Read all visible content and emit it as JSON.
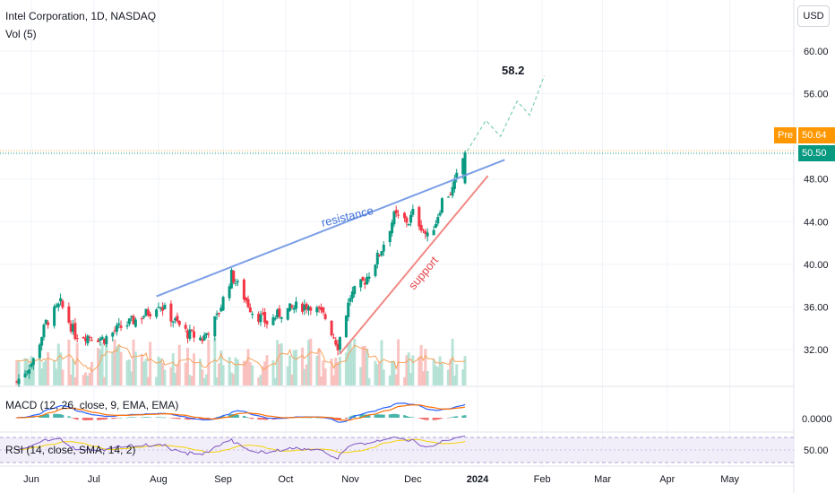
{
  "header": {
    "title": "Intel Corporation, 1D, NASDAQ",
    "volume_label": "Vol (5)",
    "currency": "USD"
  },
  "price_tags": {
    "pre_label": "Pre",
    "pre_value": "50.64",
    "last_value": "50.50",
    "pre_color": "#ff9800",
    "last_color": "#089981"
  },
  "annotations": {
    "resistance": "resistance",
    "support": "support",
    "target": "58.2"
  },
  "indicators": {
    "macd_label": "MACD (12, 26, close, 9, EMA, EMA)",
    "macd_value": "0.0000",
    "rsi_label": "RSI (14, close, SMA, 14, 2)",
    "rsi_value": "50.00"
  },
  "colors": {
    "up": "#089981",
    "down": "#f23645",
    "resistance": "#7b9ee6",
    "support": "#f08a84",
    "macd_line": "#2962ff",
    "signal_line": "#ff6d00",
    "rsi_line": "#7e57c2",
    "rsi_ma": "#f5d100"
  },
  "chart_data": {
    "type": "candlestick",
    "title": "Intel Corporation, 1D, NASDAQ",
    "x_axis_ticks": [
      "Jun",
      "Jul",
      "Aug",
      "Sep",
      "Oct",
      "Nov",
      "Dec",
      "2024",
      "Feb",
      "Mar",
      "Apr",
      "May"
    ],
    "y_axis_ticks": [
      "60.00",
      "56.00",
      "48.00",
      "44.00",
      "40.00",
      "36.00",
      "32.00"
    ],
    "y_range": [
      29.5,
      62
    ],
    "price_path": [
      [
        "2023-05-25",
        29.0
      ],
      [
        "2023-06-02",
        31.0
      ],
      [
        "2023-06-08",
        34.5
      ],
      [
        "2023-06-15",
        36.3
      ],
      [
        "2023-06-22",
        33.4
      ],
      [
        "2023-06-29",
        33.3
      ],
      [
        "2023-07-06",
        33.0
      ],
      [
        "2023-07-13",
        34.0
      ],
      [
        "2023-07-21",
        34.8
      ],
      [
        "2023-07-28",
        35.6
      ],
      [
        "2023-08-01",
        36.4
      ],
      [
        "2023-08-08",
        34.8
      ],
      [
        "2023-08-15",
        33.5
      ],
      [
        "2023-08-22",
        33.0
      ],
      [
        "2023-08-29",
        35.0
      ],
      [
        "2023-09-05",
        39.0
      ],
      [
        "2023-09-08",
        38.0
      ],
      [
        "2023-09-15",
        35.6
      ],
      [
        "2023-09-22",
        34.5
      ],
      [
        "2023-09-29",
        35.5
      ],
      [
        "2023-10-06",
        36.0
      ],
      [
        "2023-10-13",
        36.2
      ],
      [
        "2023-10-20",
        35.0
      ],
      [
        "2023-10-26",
        32.4
      ],
      [
        "2023-11-01",
        37.0
      ],
      [
        "2023-11-08",
        38.5
      ],
      [
        "2023-11-15",
        41.0
      ],
      [
        "2023-11-22",
        44.5
      ],
      [
        "2023-11-29",
        44.0
      ],
      [
        "2023-12-01",
        44.8
      ],
      [
        "2023-12-05",
        43.6
      ],
      [
        "2023-12-08",
        42.5
      ],
      [
        "2023-12-12",
        44.0
      ],
      [
        "2023-12-15",
        46.0
      ],
      [
        "2023-12-20",
        47.0
      ],
      [
        "2023-12-26",
        50.5
      ]
    ],
    "resistance_line": [
      [
        "2023-07-31",
        37.0
      ],
      [
        "2024-01-14",
        49.8
      ]
    ],
    "support_line": [
      [
        "2023-10-27",
        31.6
      ],
      [
        "2024-01-06",
        48.3
      ]
    ],
    "projection_path": [
      [
        "2023-12-27",
        50.6
      ],
      [
        "2024-01-05",
        53.5
      ],
      [
        "2024-01-12",
        52.0
      ],
      [
        "2024-01-20",
        55.3
      ],
      [
        "2024-01-26",
        54.0
      ],
      [
        "2024-02-02",
        57.7
      ]
    ],
    "target_price": 58.2,
    "current_price": 50.5,
    "premarket_price": 50.64,
    "macd_zero": 0.0,
    "rsi_mid": 50.0
  }
}
